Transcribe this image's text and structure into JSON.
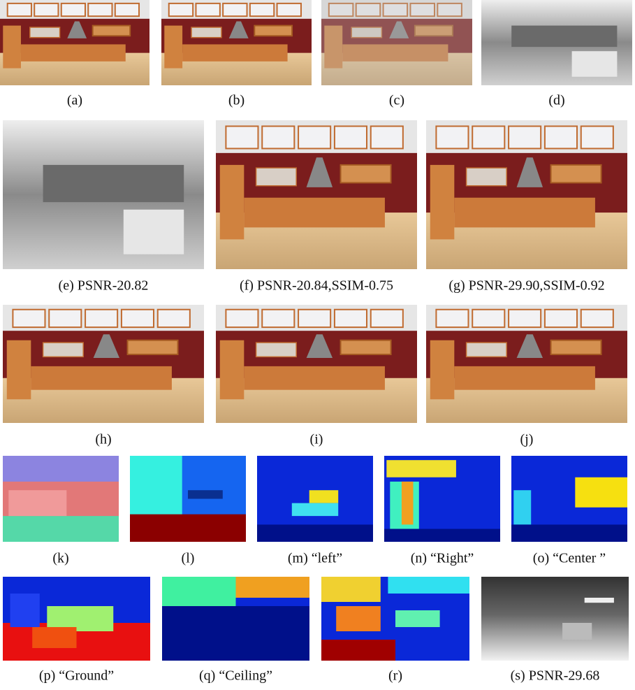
{
  "figure": {
    "panels": [
      {
        "caption": "(a)"
      },
      {
        "caption": "(b)"
      },
      {
        "caption": "(c)"
      },
      {
        "caption": "(d)"
      },
      {
        "caption": "(e) PSNR-20.82"
      },
      {
        "caption": "(f) PSNR-20.84,SSIM-0.75"
      },
      {
        "caption": "(g) PSNR-29.90,SSIM-0.92"
      },
      {
        "caption": "(h)"
      },
      {
        "caption": "(i)"
      },
      {
        "caption": "(j)"
      },
      {
        "caption": "(k)"
      },
      {
        "caption": "(l)"
      },
      {
        "caption": "(m) “left”"
      },
      {
        "caption": "(n) “Right”"
      },
      {
        "caption": "(o) “Center ”"
      },
      {
        "caption": "(p) “Ground”"
      },
      {
        "caption": "(q) “Ceiling”"
      },
      {
        "caption": "(r)"
      },
      {
        "caption": "(s) PSNR-29.68"
      }
    ]
  }
}
